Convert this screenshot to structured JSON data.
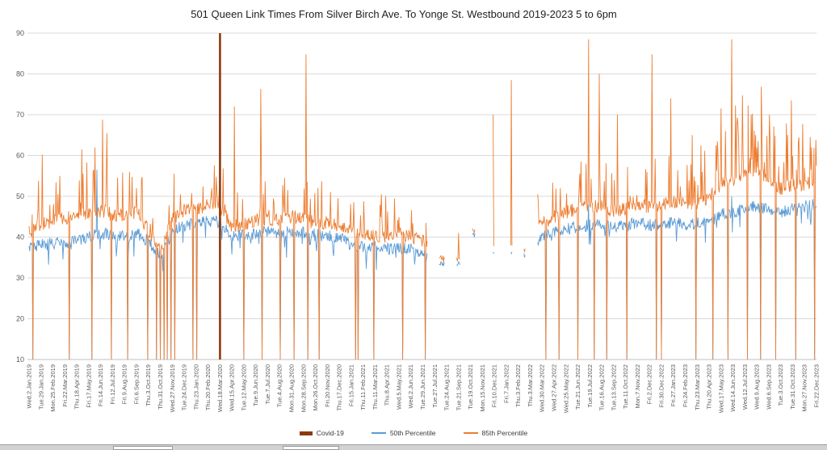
{
  "title": "501 Queen Link Times From Silver Birch Ave. To Yonge St. Westbound 2019-2023 5 to 6pm",
  "legend": [
    {
      "label": "Covid-19",
      "color": "#8C3A0F",
      "style": "thick"
    },
    {
      "label": "50th Percentile",
      "color": "#5B9BD5",
      "style": "line"
    },
    {
      "label": "85th Percentile",
      "color": "#ED7D31",
      "style": "line"
    }
  ],
  "colors": {
    "covid": "#8C3A0F",
    "p50": "#5B9BD5",
    "p85": "#ED7D31",
    "grid": "#D9D9D9",
    "axis_line": "#BFBFBF",
    "axis_text": "#595959",
    "title_text": "#1F1F1F"
  },
  "chart_data": {
    "type": "line",
    "title": "501 Queen Link Times From Silver Birch Ave. To Yonge St. Westbound 2019-2023 5 to 6pm",
    "xlabel": "",
    "ylabel": "",
    "ylim": [
      10,
      90
    ],
    "yticks": [
      10,
      20,
      30,
      40,
      50,
      60,
      70,
      80,
      90
    ],
    "grid": true,
    "legend_position": "bottom",
    "x_tick_labels": [
      "Wed.2.Jan.2019",
      "Tue.29.Jan.2019",
      "Mon.25.Feb.2019",
      "Fri.22.Mar.2019",
      "Thu.18.Apr.2019",
      "Fri.17.May.2019",
      "Fri.14.Jun.2019",
      "Fri.12.Jul.2019",
      "Fri.9.Aug.2019",
      "Fri.6.Sep.2019",
      "Thu.3.Oct.2019",
      "Thu.31.Oct.2019",
      "Wed.27.Nov.2019",
      "Tue.24.Dec.2019",
      "Thu.23.Jan.2020",
      "Thu.20.Feb.2020",
      "Wed.18.Mar.2020",
      "Wed.15.Apr.2020",
      "Tue.12.May.2020",
      "Tue.9.Jun.2020",
      "Tue.7.Jul.2020",
      "Tue.4.Aug.2020",
      "Mon.31.Aug.2020",
      "Mon.28.Sep.2020",
      "Mon.26.Oct.2020",
      "Fri.20.Nov.2020",
      "Thu.17.Dec.2020",
      "Fri.15.Jan.2021",
      "Thu.11.Feb.2021",
      "Thu.11.Mar.2021",
      "Thu.8.Apr.2021",
      "Wed.5.May.2021",
      "Wed.2.Jun.2021",
      "Tue.29.Jun.2021",
      "Tue.27.Jul.2021",
      "Tue.24.Aug.2021",
      "Tue.21.Sep.2021",
      "Tue.19.Oct.2021",
      "Mon.15.Nov.2021",
      "Fri.10.Dec.2021",
      "Fri.7.Jan.2022",
      "Thu.3.Feb.2022",
      "Thu.3.Mar.2022",
      "Wed.30.Mar.2022",
      "Wed.27.Apr.2022",
      "Wed.25.May.2022",
      "Tue.21.Jun.2022",
      "Tue.19.Jul.2022",
      "Tue.16.Aug.2022",
      "Tue.13.Sep.2022",
      "Tue.11.Oct.2022",
      "Mon.7.Nov.2022",
      "Fri.2.Dec.2022",
      "Fri.30.Dec.2022",
      "Fri.27.Jan.2023",
      "Fri.24.Feb.2023",
      "Thu.23.Mar.2023",
      "Thu.20.Apr.2023",
      "Wed.17.May.2023",
      "Wed.14.Jun.2023",
      "Wed.12.Jul.2023",
      "Wed.9.Aug.2023",
      "Wed.6.Sep.2023",
      "Tue.3.Oct.2023",
      "Tue.31.Oct.2023",
      "Mon.27.Nov.2023",
      "Fri.22.Dec.2023"
    ],
    "points_per_tick": 19,
    "noise_seed": 42,
    "series": [
      {
        "name": "50th Percentile",
        "color": "#5B9BD5",
        "baseline": [
          37.5,
          38,
          38.5,
          38.5,
          39,
          40,
          41,
          40.5,
          40,
          41,
          39,
          35.5,
          41,
          43,
          43,
          44,
          43.5,
          40,
          40.5,
          41,
          41.5,
          41,
          41.5,
          41,
          40.5,
          40.5,
          40,
          38,
          37.5,
          37.5,
          37,
          37.5,
          37,
          36,
          34,
          34,
          35,
          38,
          36,
          36,
          36,
          36.5,
          37.5,
          40,
          41,
          42,
          42.5,
          43,
          43,
          42.5,
          43,
          43.5,
          43,
          43,
          43.5,
          43,
          43.5,
          44,
          45.5,
          46,
          47,
          47.5,
          46.5,
          46,
          47,
          47.5,
          48
        ]
      },
      {
        "name": "85th Percentile",
        "color": "#ED7D31",
        "baseline": [
          41.5,
          43,
          44,
          44.5,
          45.5,
          46,
          46.5,
          45.5,
          45,
          46,
          42,
          36.5,
          44.5,
          46.5,
          46.5,
          48,
          47.5,
          42.5,
          43,
          44,
          44.5,
          44,
          45,
          44.5,
          43.5,
          43.5,
          43,
          41,
          40.5,
          40.5,
          40,
          40.5,
          40,
          39,
          35.5,
          36,
          38,
          40,
          39,
          40,
          40,
          40,
          41,
          43.5,
          45,
          46,
          47,
          47.5,
          47.5,
          46.5,
          47,
          48,
          47.5,
          48,
          48.5,
          48,
          48.5,
          49.5,
          53,
          54,
          55.5,
          56,
          54,
          52,
          52.5,
          53,
          53.5
        ]
      }
    ],
    "covid_marker": {
      "label": "Covid-19",
      "x_tick": "Wed.18.Mar.2020",
      "x_tick_index": 16,
      "color": "#8C3A0F",
      "y_top": 90,
      "y_bottom": 10
    },
    "gap": {
      "start": 33.4,
      "end": 42.6
    },
    "islands": [
      {
        "t0": 34.35,
        "t1": 34.85,
        "p50": 33.5,
        "p85": 34.5
      },
      {
        "t0": 35.8,
        "t1": 36.15,
        "p50": 33.5,
        "p85": 41
      },
      {
        "t0": 37.15,
        "t1": 37.4,
        "p50": 40.5,
        "p85": 41.5
      },
      {
        "t0": 38.85,
        "t1": 38.95,
        "p50": 36,
        "p85": 70
      },
      {
        "t0": 40.35,
        "t1": 40.5,
        "p50": 36,
        "p85": 78.5
      },
      {
        "t0": 41.45,
        "t1": 41.6,
        "p50": 35.5,
        "p85": 36.5
      }
    ],
    "spikes_85": [
      [
        1.1,
        60.2
      ],
      [
        2.6,
        55
      ],
      [
        4.4,
        61.5
      ],
      [
        5.4,
        56.5
      ],
      [
        6.15,
        68.8
      ],
      [
        6.5,
        65.5
      ],
      [
        9.0,
        52
      ],
      [
        12.7,
        50.5
      ],
      [
        13.3,
        47.5
      ],
      [
        15.3,
        52
      ],
      [
        17.2,
        72
      ],
      [
        19.4,
        76.3
      ],
      [
        21.4,
        54.5
      ],
      [
        23.2,
        84.8
      ],
      [
        25.9,
        49.5
      ],
      [
        29.5,
        50.5
      ],
      [
        44.5,
        52
      ],
      [
        46.9,
        88.5
      ],
      [
        47.8,
        80
      ],
      [
        49.3,
        70
      ],
      [
        51.8,
        56
      ],
      [
        52.2,
        84.8
      ],
      [
        53.8,
        74
      ],
      [
        55.6,
        65
      ],
      [
        56.3,
        62.5
      ],
      [
        57.6,
        62.5
      ],
      [
        58.9,
        88.5
      ],
      [
        59.3,
        67.5
      ],
      [
        60.5,
        70
      ],
      [
        60.9,
        65
      ],
      [
        61.4,
        67
      ],
      [
        62.1,
        64
      ],
      [
        63.9,
        73.5
      ],
      [
        65.0,
        57
      ],
      [
        65.6,
        62
      ],
      [
        66.0,
        57.5
      ]
    ],
    "spikes_50": [
      [
        5.7,
        56.5
      ],
      [
        46.9,
        48
      ],
      [
        58.9,
        50
      ]
    ],
    "dropouts": [
      0.3,
      3.35,
      5.25,
      6.9,
      8.25,
      9.95,
      10.7,
      11.0,
      11.3,
      11.6,
      11.9,
      12.2,
      13.75,
      14.05,
      16.0,
      18.0,
      19.5,
      21.05,
      22.2,
      23.35,
      24.3,
      27.35,
      27.6,
      28.9,
      31.3,
      33.2,
      43.3,
      44.4,
      46.0,
      47.35,
      48.4,
      50.1,
      52.6,
      53.0,
      55.9,
      57.3,
      58.6,
      60.2,
      61.3,
      62.6,
      64.25,
      65.85
    ]
  }
}
